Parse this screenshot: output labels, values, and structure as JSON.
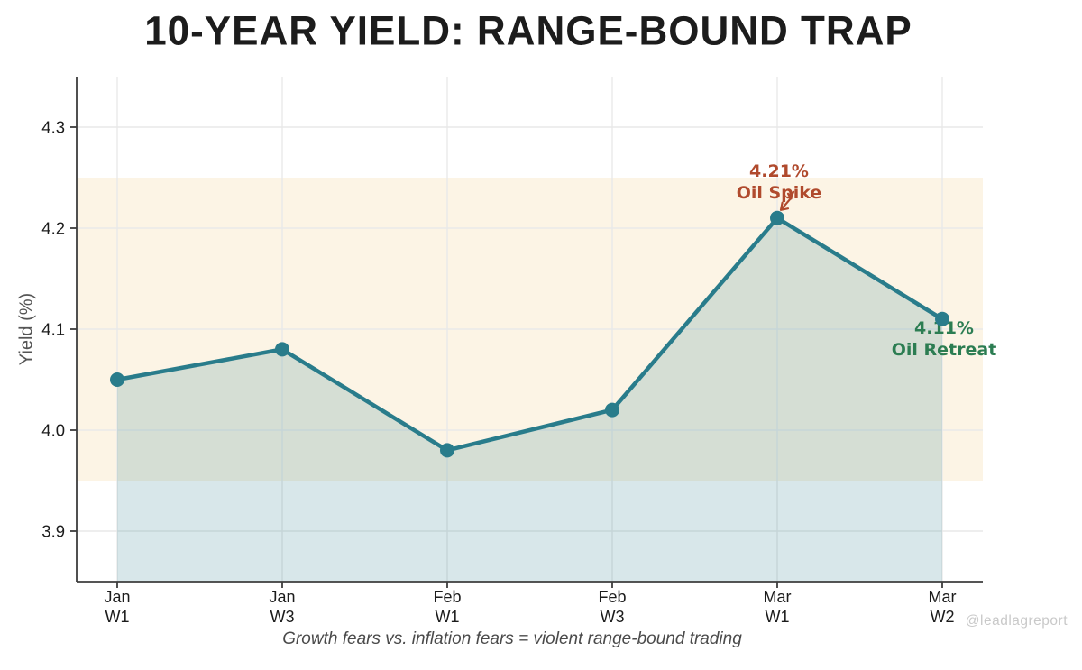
{
  "watermark": "@leadlagreport",
  "chart_data": {
    "type": "line",
    "title": "10-YEAR YIELD: RANGE-BOUND TRAP",
    "subtitle": "Growth fears vs. inflation fears = violent range-bound trading",
    "ylabel": "Yield (%)",
    "x_tick_labels": [
      {
        "month": "Jan",
        "week": "W1"
      },
      {
        "month": "Jan",
        "week": "W3"
      },
      {
        "month": "Feb",
        "week": "W1"
      },
      {
        "month": "Feb",
        "week": "W3"
      },
      {
        "month": "Mar",
        "week": "W1"
      },
      {
        "month": "Mar",
        "week": "W2"
      }
    ],
    "values": [
      4.05,
      4.08,
      3.98,
      4.02,
      4.21,
      4.11
    ],
    "y_ticks": [
      "3.9",
      "4.0",
      "4.1",
      "4.2",
      "4.3"
    ],
    "ylim": [
      3.85,
      4.35
    ],
    "grid": true,
    "legend": "none",
    "range_band": {
      "from": 3.95,
      "to": 4.25
    },
    "annotations": [
      {
        "lines": [
          "4.21%",
          "Oil Spike"
        ],
        "color": "#b04a2d",
        "x_index": 4,
        "value": 4.21,
        "position": "above",
        "arrow": true
      },
      {
        "lines": [
          "4.11%",
          "Oil Retreat"
        ],
        "color": "#2c7d52",
        "x_index": 5,
        "value": 4.11,
        "position": "below",
        "arrow": false
      }
    ],
    "colors": {
      "line": "#297c8b",
      "point": "#297c8b",
      "area_fill": "rgba(41,124,139,0.18)",
      "band": "#fcf4e5",
      "grid": "#e9e9e9",
      "spine": "#3d3d3d",
      "tick_text": "#1c1c1c",
      "title_text": "#1c1c1c",
      "subtitle_text": "#4a4a4a",
      "watermark_text": "#c9c9c9"
    }
  }
}
